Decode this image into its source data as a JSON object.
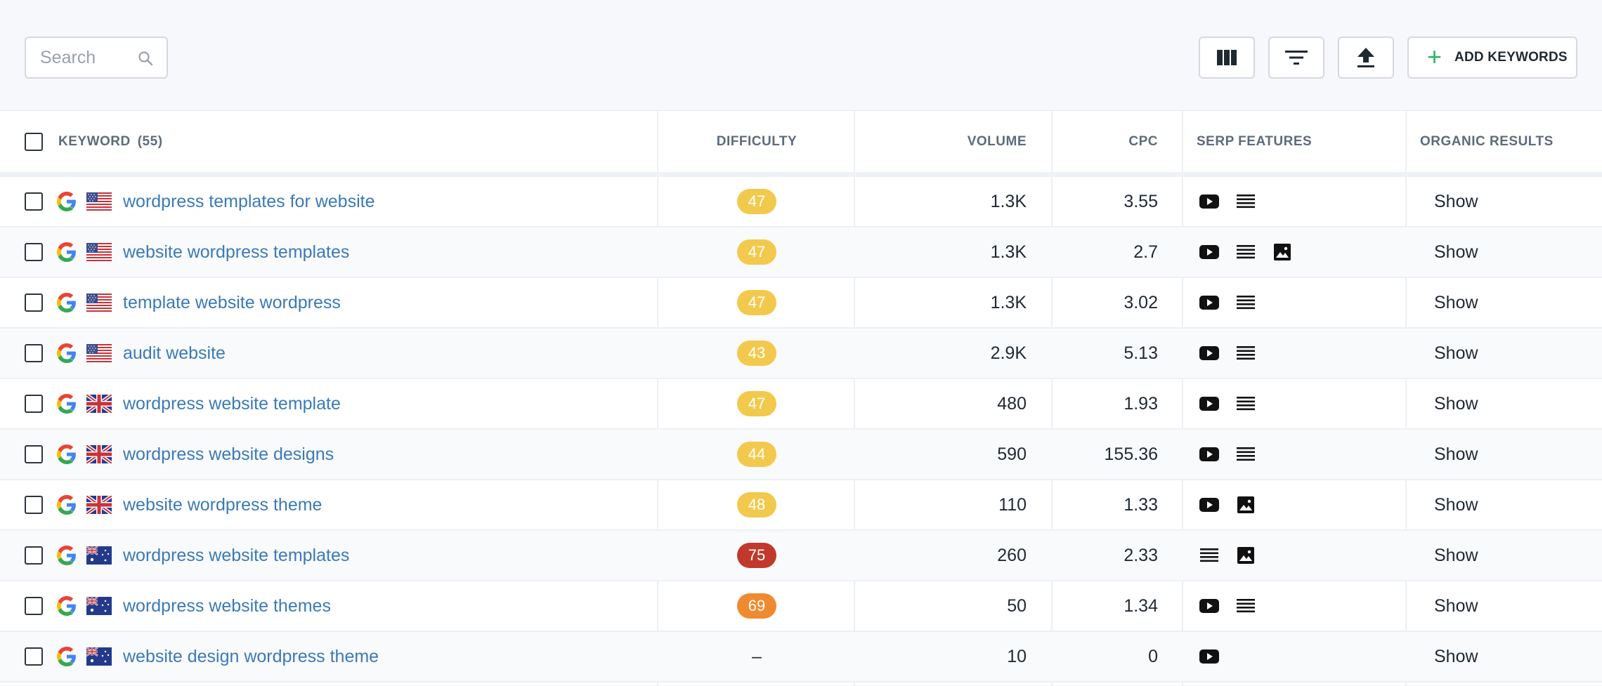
{
  "toolbar": {
    "search_placeholder": "Search",
    "columns_icon": "columns-icon",
    "filter_icon": "filter-icon",
    "export_icon": "upload-icon",
    "add_label": "ADD KEYWORDS",
    "add_icon": "+"
  },
  "table": {
    "headers": {
      "keyword": "KEYWORD",
      "keyword_count": "(55)",
      "difficulty": "DIFFICULTY",
      "volume": "VOLUME",
      "cpc": "CPC",
      "serp": "SERP FEATURES",
      "organic": "ORGANIC RESULTS"
    },
    "rows": [
      {
        "keyword": "wordpress templates for website",
        "flag": "us",
        "difficulty": "47",
        "difficulty_color": "#f2c94c",
        "volume": "1.3K",
        "cpc": "3.55",
        "features": [
          "video-icon",
          "list-icon"
        ],
        "organic": "Show"
      },
      {
        "keyword": "website wordpress templates",
        "flag": "us",
        "difficulty": "47",
        "difficulty_color": "#f2c94c",
        "volume": "1.3K",
        "cpc": "2.7",
        "features": [
          "video-icon",
          "list-icon",
          "image-icon"
        ],
        "organic": "Show"
      },
      {
        "keyword": "template website wordpress",
        "flag": "us",
        "difficulty": "47",
        "difficulty_color": "#f2c94c",
        "volume": "1.3K",
        "cpc": "3.02",
        "features": [
          "video-icon",
          "list-icon"
        ],
        "organic": "Show"
      },
      {
        "keyword": "audit website",
        "flag": "us",
        "difficulty": "43",
        "difficulty_color": "#f2c94c",
        "volume": "2.9K",
        "cpc": "5.13",
        "features": [
          "video-icon",
          "list-icon"
        ],
        "organic": "Show"
      },
      {
        "keyword": "wordpress website template",
        "flag": "uk",
        "difficulty": "47",
        "difficulty_color": "#f2c94c",
        "volume": "480",
        "cpc": "1.93",
        "features": [
          "video-icon",
          "list-icon"
        ],
        "organic": "Show"
      },
      {
        "keyword": "wordpress website designs",
        "flag": "uk",
        "difficulty": "44",
        "difficulty_color": "#f2c94c",
        "volume": "590",
        "cpc": "155.36",
        "features": [
          "video-icon",
          "list-icon"
        ],
        "organic": "Show"
      },
      {
        "keyword": "website wordpress theme",
        "flag": "uk",
        "difficulty": "48",
        "difficulty_color": "#f2c94c",
        "volume": "110",
        "cpc": "1.33",
        "features": [
          "video-icon",
          "image-icon"
        ],
        "organic": "Show"
      },
      {
        "keyword": "wordpress website templates",
        "flag": "au",
        "difficulty": "75",
        "difficulty_color": "#c0392b",
        "volume": "260",
        "cpc": "2.33",
        "features": [
          "list-icon",
          "image-icon"
        ],
        "organic": "Show"
      },
      {
        "keyword": "wordpress website themes",
        "flag": "au",
        "difficulty": "69",
        "difficulty_color": "#f08a2e",
        "volume": "50",
        "cpc": "1.34",
        "features": [
          "video-icon",
          "list-icon"
        ],
        "organic": "Show"
      },
      {
        "keyword": "website design wordpress theme",
        "flag": "au",
        "difficulty": "–",
        "difficulty_color": "",
        "volume": "10",
        "cpc": "0",
        "features": [
          "video-icon"
        ],
        "organic": "Show"
      }
    ]
  },
  "colors": {
    "link": "#3a7ab8",
    "accent_green": "#2fb36b",
    "difficulty_easy": "#f2c94c",
    "difficulty_medium": "#f08a2e",
    "difficulty_hard": "#c0392b"
  }
}
